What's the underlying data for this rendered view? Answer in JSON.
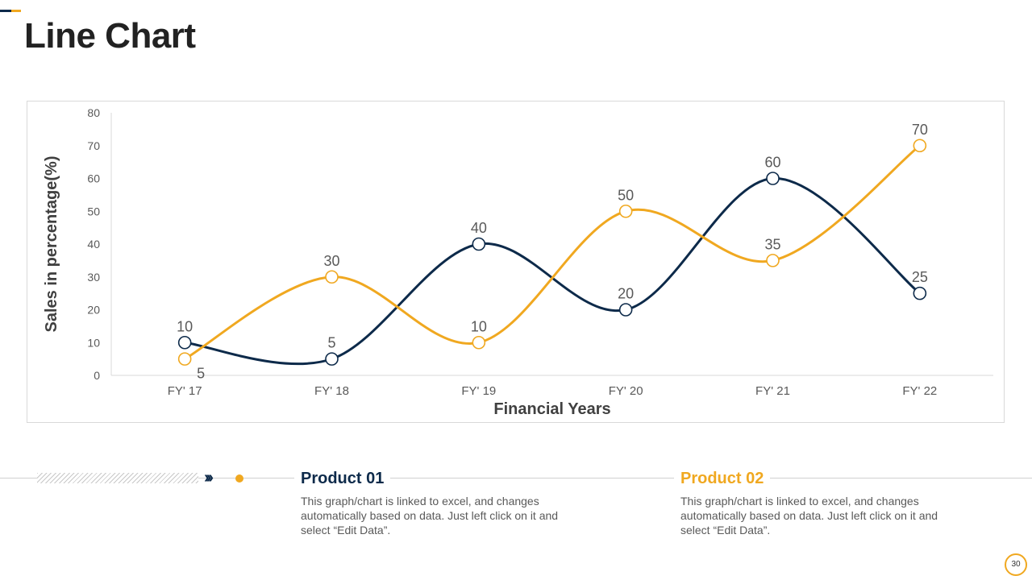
{
  "page": {
    "title": "Line Chart",
    "page_number": "30"
  },
  "colors": {
    "navy": "#0d2a4a",
    "gold": "#f0a820",
    "grid": "#d9d9d9",
    "text": "#595959"
  },
  "chart_data": {
    "type": "line",
    "title": "",
    "xlabel": "Financial Years",
    "ylabel": "Sales in percentage(%)",
    "categories": [
      "FY' 17",
      "FY' 18",
      "FY' 19",
      "FY' 20",
      "FY' 21",
      "FY' 22"
    ],
    "ylim": [
      0,
      80
    ],
    "yticks": [
      0,
      10,
      20,
      30,
      40,
      50,
      60,
      70,
      80
    ],
    "grid": false,
    "legend": "none",
    "smooth": true,
    "series": [
      {
        "name": "Product 01",
        "color": "#0d2a4a",
        "values": [
          10,
          5,
          40,
          20,
          60,
          25
        ]
      },
      {
        "name": "Product 02",
        "color": "#f0a820",
        "values": [
          5,
          30,
          10,
          50,
          35,
          70
        ]
      }
    ]
  },
  "products": [
    {
      "title": "Product 01",
      "description": "This graph/chart is linked to excel, and changes automatically based on data. Just left click on it and select “Edit Data”."
    },
    {
      "title": "Product  02",
      "description": "This graph/chart is linked to excel, and changes automatically based on data. Just left click on it and select “Edit Data”."
    }
  ]
}
